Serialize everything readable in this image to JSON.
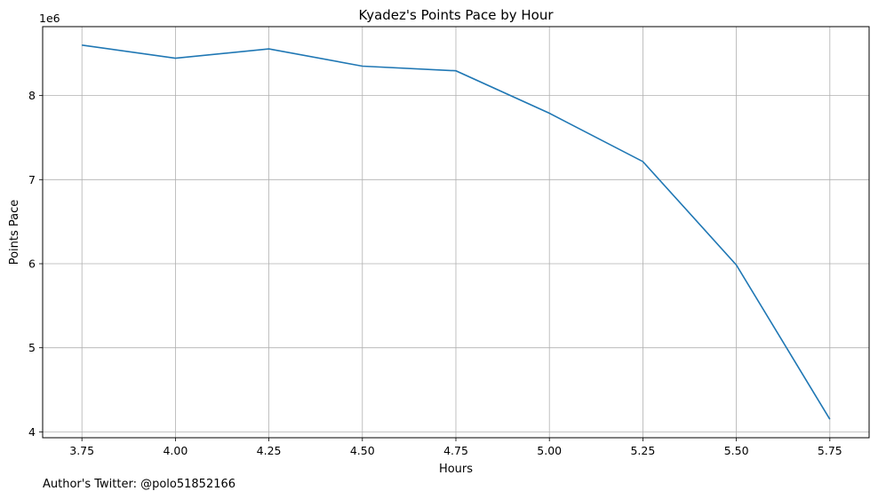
{
  "chart_data": {
    "type": "line",
    "title": "Kyadez's Points Pace by Hour",
    "xlabel": "Hours",
    "ylabel": "Points Pace",
    "y_offset_label": "1e6",
    "x": [
      3.75,
      4.0,
      4.25,
      4.5,
      4.75,
      5.0,
      5.25,
      5.5,
      5.75
    ],
    "values": [
      8600000,
      8445000,
      8555000,
      8350000,
      8295000,
      7790000,
      7215000,
      5985000,
      4150000
    ],
    "xlim": [
      3.645,
      5.855
    ],
    "ylim": [
      3.93,
      8.82
    ],
    "x_ticks": [
      3.75,
      4.0,
      4.25,
      4.5,
      4.75,
      5.0,
      5.25,
      5.5,
      5.75
    ],
    "x_tick_labels": [
      "3.75",
      "4.00",
      "4.25",
      "4.50",
      "4.75",
      "5.00",
      "5.25",
      "5.50",
      "5.75"
    ],
    "y_ticks": [
      4,
      5,
      6,
      7,
      8
    ],
    "y_tick_labels": [
      "4",
      "5",
      "6",
      "7",
      "8"
    ],
    "grid": true,
    "line_color": "#1f77b4",
    "grid_color": "#b0b0b0"
  },
  "footer": {
    "text": "Author's Twitter: @polo51852166"
  }
}
